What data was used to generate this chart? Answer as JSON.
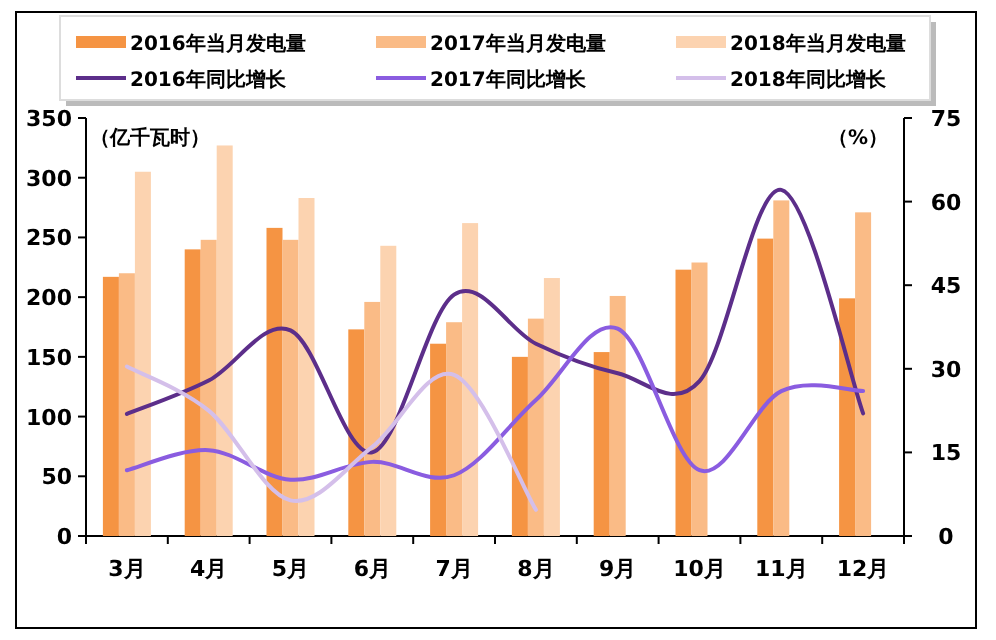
{
  "chart_data": {
    "type": "bar",
    "categories": [
      "3月",
      "4月",
      "5月",
      "6月",
      "7月",
      "8月",
      "9月",
      "10月",
      "11月",
      "12月"
    ],
    "ylabel": "（亿千瓦时）",
    "y2label": "（%）",
    "ylim": [
      0,
      350
    ],
    "yticks": [
      0,
      50,
      100,
      150,
      200,
      250,
      300,
      350
    ],
    "y2lim": [
      0,
      75
    ],
    "y2ticks": [
      0,
      15,
      30,
      45,
      60,
      75
    ],
    "legend": "top",
    "grid": false,
    "series": [
      {
        "name": "2016年当月发电量",
        "color": "#f59443",
        "values": [
          217,
          240,
          258,
          173,
          161,
          150,
          154,
          223,
          249,
          199
        ]
      },
      {
        "name": "2017年当月发电量",
        "color": "#fabb86",
        "values": [
          220,
          248,
          248,
          196,
          179,
          182,
          201,
          229,
          281,
          271
        ]
      },
      {
        "name": "2018年当月发电量",
        "color": "#fcd3b0",
        "values": [
          305,
          327,
          283,
          243,
          262,
          216,
          null,
          null,
          null,
          null
        ]
      },
      {
        "name": "2016年同比增长",
        "type": "line",
        "axis": "y2",
        "color": "#5c2e8a",
        "values": [
          21.9,
          27.9,
          36.9,
          15,
          43.3,
          34.5,
          29.2,
          27.8,
          62.1,
          22
        ]
      },
      {
        "name": "2017年同比增长",
        "type": "line",
        "axis": "y2",
        "color": "#8a5ce0",
        "values": [
          11.8,
          15.4,
          10.1,
          13.3,
          10.9,
          24.4,
          37.2,
          11.8,
          26,
          26
        ]
      },
      {
        "name": "2018年同比增长",
        "type": "line",
        "axis": "y2",
        "color": "#d4bfea",
        "values": [
          30.4,
          22.5,
          6.4,
          16,
          28.9,
          4.7,
          null,
          null,
          null,
          null
        ]
      }
    ]
  }
}
